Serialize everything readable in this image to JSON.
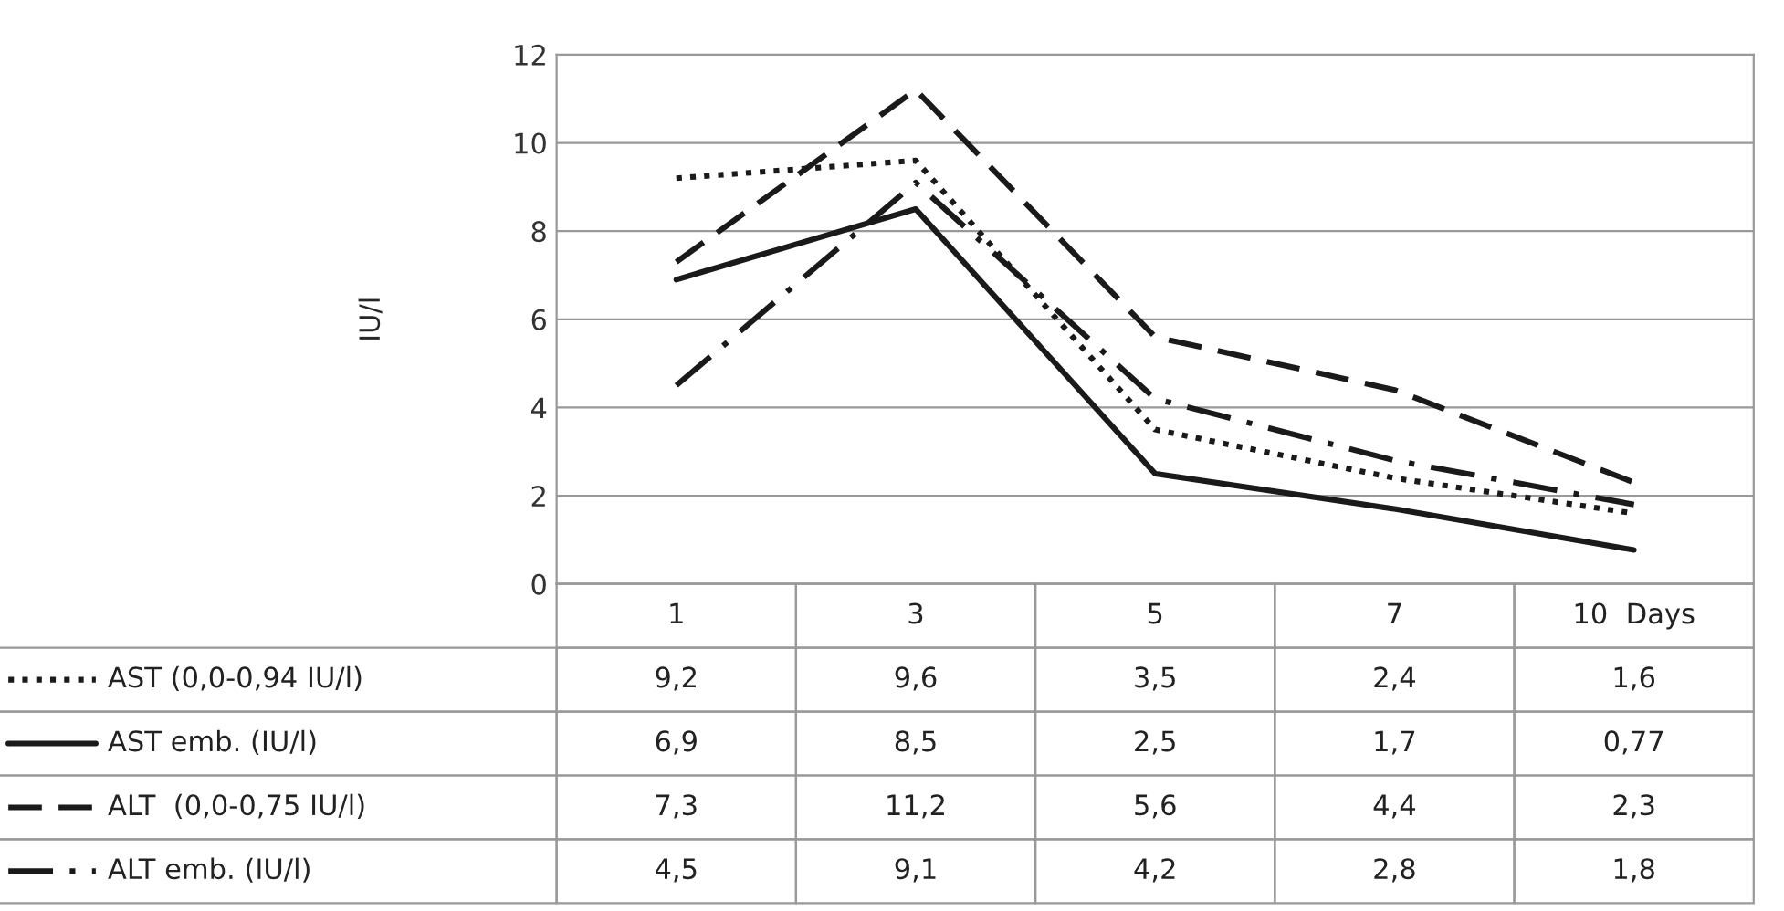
{
  "chart_data": {
    "type": "line",
    "ylabel": "IU/l",
    "categories": [
      "1",
      "3",
      "5",
      "7",
      "10  Days"
    ],
    "ylim": [
      0,
      12
    ],
    "yticks": [
      0,
      2,
      4,
      6,
      8,
      10,
      12
    ],
    "grid": "y",
    "legend": "bottom",
    "series": [
      {
        "name": "AST (0,0-0,94 IU/l)",
        "color": "#1a1a1a",
        "line_style": "dotted",
        "values": [
          9.2,
          9.6,
          3.5,
          2.4,
          1.6
        ],
        "value_labels": [
          "9,2",
          "9,6",
          "3,5",
          "2,4",
          "1,6"
        ]
      },
      {
        "name": "AST emb. (IU/l)",
        "color": "#1a1a1a",
        "line_style": "solid",
        "values": [
          6.9,
          8.5,
          2.5,
          1.7,
          0.77
        ],
        "value_labels": [
          "6,9",
          "8,5",
          "2,5",
          "1,7",
          "0,77"
        ]
      },
      {
        "name": "ALT  (0,0-0,75 IU/l)",
        "color": "#1a1a1a",
        "line_style": "dashed",
        "values": [
          7.3,
          11.2,
          5.6,
          4.4,
          2.3
        ],
        "value_labels": [
          "7,3",
          "11,2",
          "5,6",
          "4,4",
          "2,3"
        ]
      },
      {
        "name": "ALT emb. (IU/l)",
        "color": "#1a1a1a",
        "line_style": "dashdot",
        "values": [
          4.5,
          9.1,
          4.2,
          2.8,
          1.8
        ],
        "value_labels": [
          "4,5",
          "9,1",
          "4,2",
          "2,8",
          "1,8"
        ]
      }
    ]
  }
}
